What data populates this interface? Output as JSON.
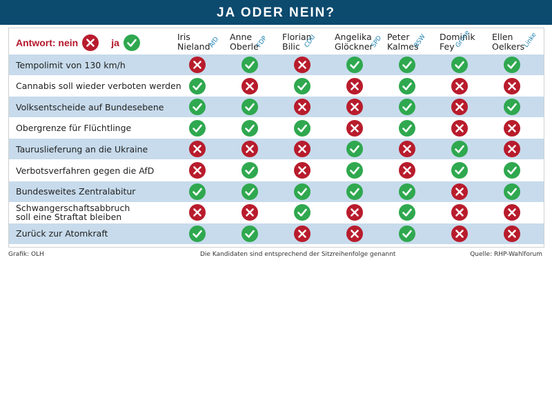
{
  "title": "JA ODER NEIN?",
  "legend": {
    "no_label": "Antwort: nein",
    "yes_label": "ja"
  },
  "candidates": [
    {
      "first": "Iris",
      "last": "Nieland",
      "party": "AfD"
    },
    {
      "first": "Anne",
      "last": "Oberle",
      "party": "FDP"
    },
    {
      "first": "Florian",
      "last": "Bilic",
      "party": "CDU"
    },
    {
      "first": "Angelika",
      "last": "Glöckner",
      "party": "SPD"
    },
    {
      "first": "Peter",
      "last": "Kalmes",
      "party": "BSW"
    },
    {
      "first": "Dominik",
      "last": "Fey",
      "party": "Grüne"
    },
    {
      "first": "Ellen",
      "last": "Oelkers",
      "party": "Linke"
    }
  ],
  "chart_data": {
    "type": "table",
    "columns": [
      "Iris Nieland AfD",
      "Anne Oberle FDP",
      "Florian Bilic CDU",
      "Angelika Glöckner SPD",
      "Peter Kalmes BSW",
      "Dominik Fey Grüne",
      "Ellen Oelkers Linke"
    ],
    "rows": [
      {
        "question": "Tempolimit von 130 km/h",
        "answers": [
          "nein",
          "ja",
          "nein",
          "ja",
          "ja",
          "ja",
          "ja"
        ]
      },
      {
        "question": "Cannabis soll wieder verboten werden",
        "answers": [
          "ja",
          "nein",
          "ja",
          "nein",
          "ja",
          "nein",
          "nein"
        ]
      },
      {
        "question": "Volksentscheide auf Bundesebene",
        "answers": [
          "ja",
          "ja",
          "nein",
          "nein",
          "ja",
          "nein",
          "ja"
        ]
      },
      {
        "question": "Obergrenze für Flüchtlinge",
        "answers": [
          "ja",
          "ja",
          "ja",
          "nein",
          "ja",
          "nein",
          "nein"
        ]
      },
      {
        "question": "Tauruslieferung an die Ukraine",
        "answers": [
          "nein",
          "nein",
          "nein",
          "ja",
          "nein",
          "ja",
          "nein"
        ]
      },
      {
        "question": "Verbotsverfahren gegen die AfD",
        "answers": [
          "nein",
          "ja",
          "nein",
          "ja",
          "nein",
          "ja",
          "ja"
        ]
      },
      {
        "question": "Bundesweites Zentralabitur",
        "answers": [
          "ja",
          "ja",
          "ja",
          "ja",
          "ja",
          "nein",
          "ja"
        ]
      },
      {
        "question": "Schwangerschaftsabbruch\nsoll eine Straftat bleiben",
        "answers": [
          "nein",
          "nein",
          "ja",
          "nein",
          "ja",
          "nein",
          "nein"
        ]
      },
      {
        "question": "Zurück zur Atomkraft",
        "answers": [
          "ja",
          "ja",
          "nein",
          "nein",
          "ja",
          "nein",
          "nein"
        ]
      }
    ]
  },
  "footer": {
    "credit": "Grafik: OLH",
    "note": "Die Kandidaten sind entsprechend der Sitzreihenfolge genannt",
    "source": "Quelle: RHP-Wahlforum"
  },
  "colors": {
    "banner": "#0c4a6e",
    "no": "#b81c2c",
    "yes": "#2fa84f",
    "row_shade": "#c7dbec",
    "party": "#1b7fb0"
  }
}
